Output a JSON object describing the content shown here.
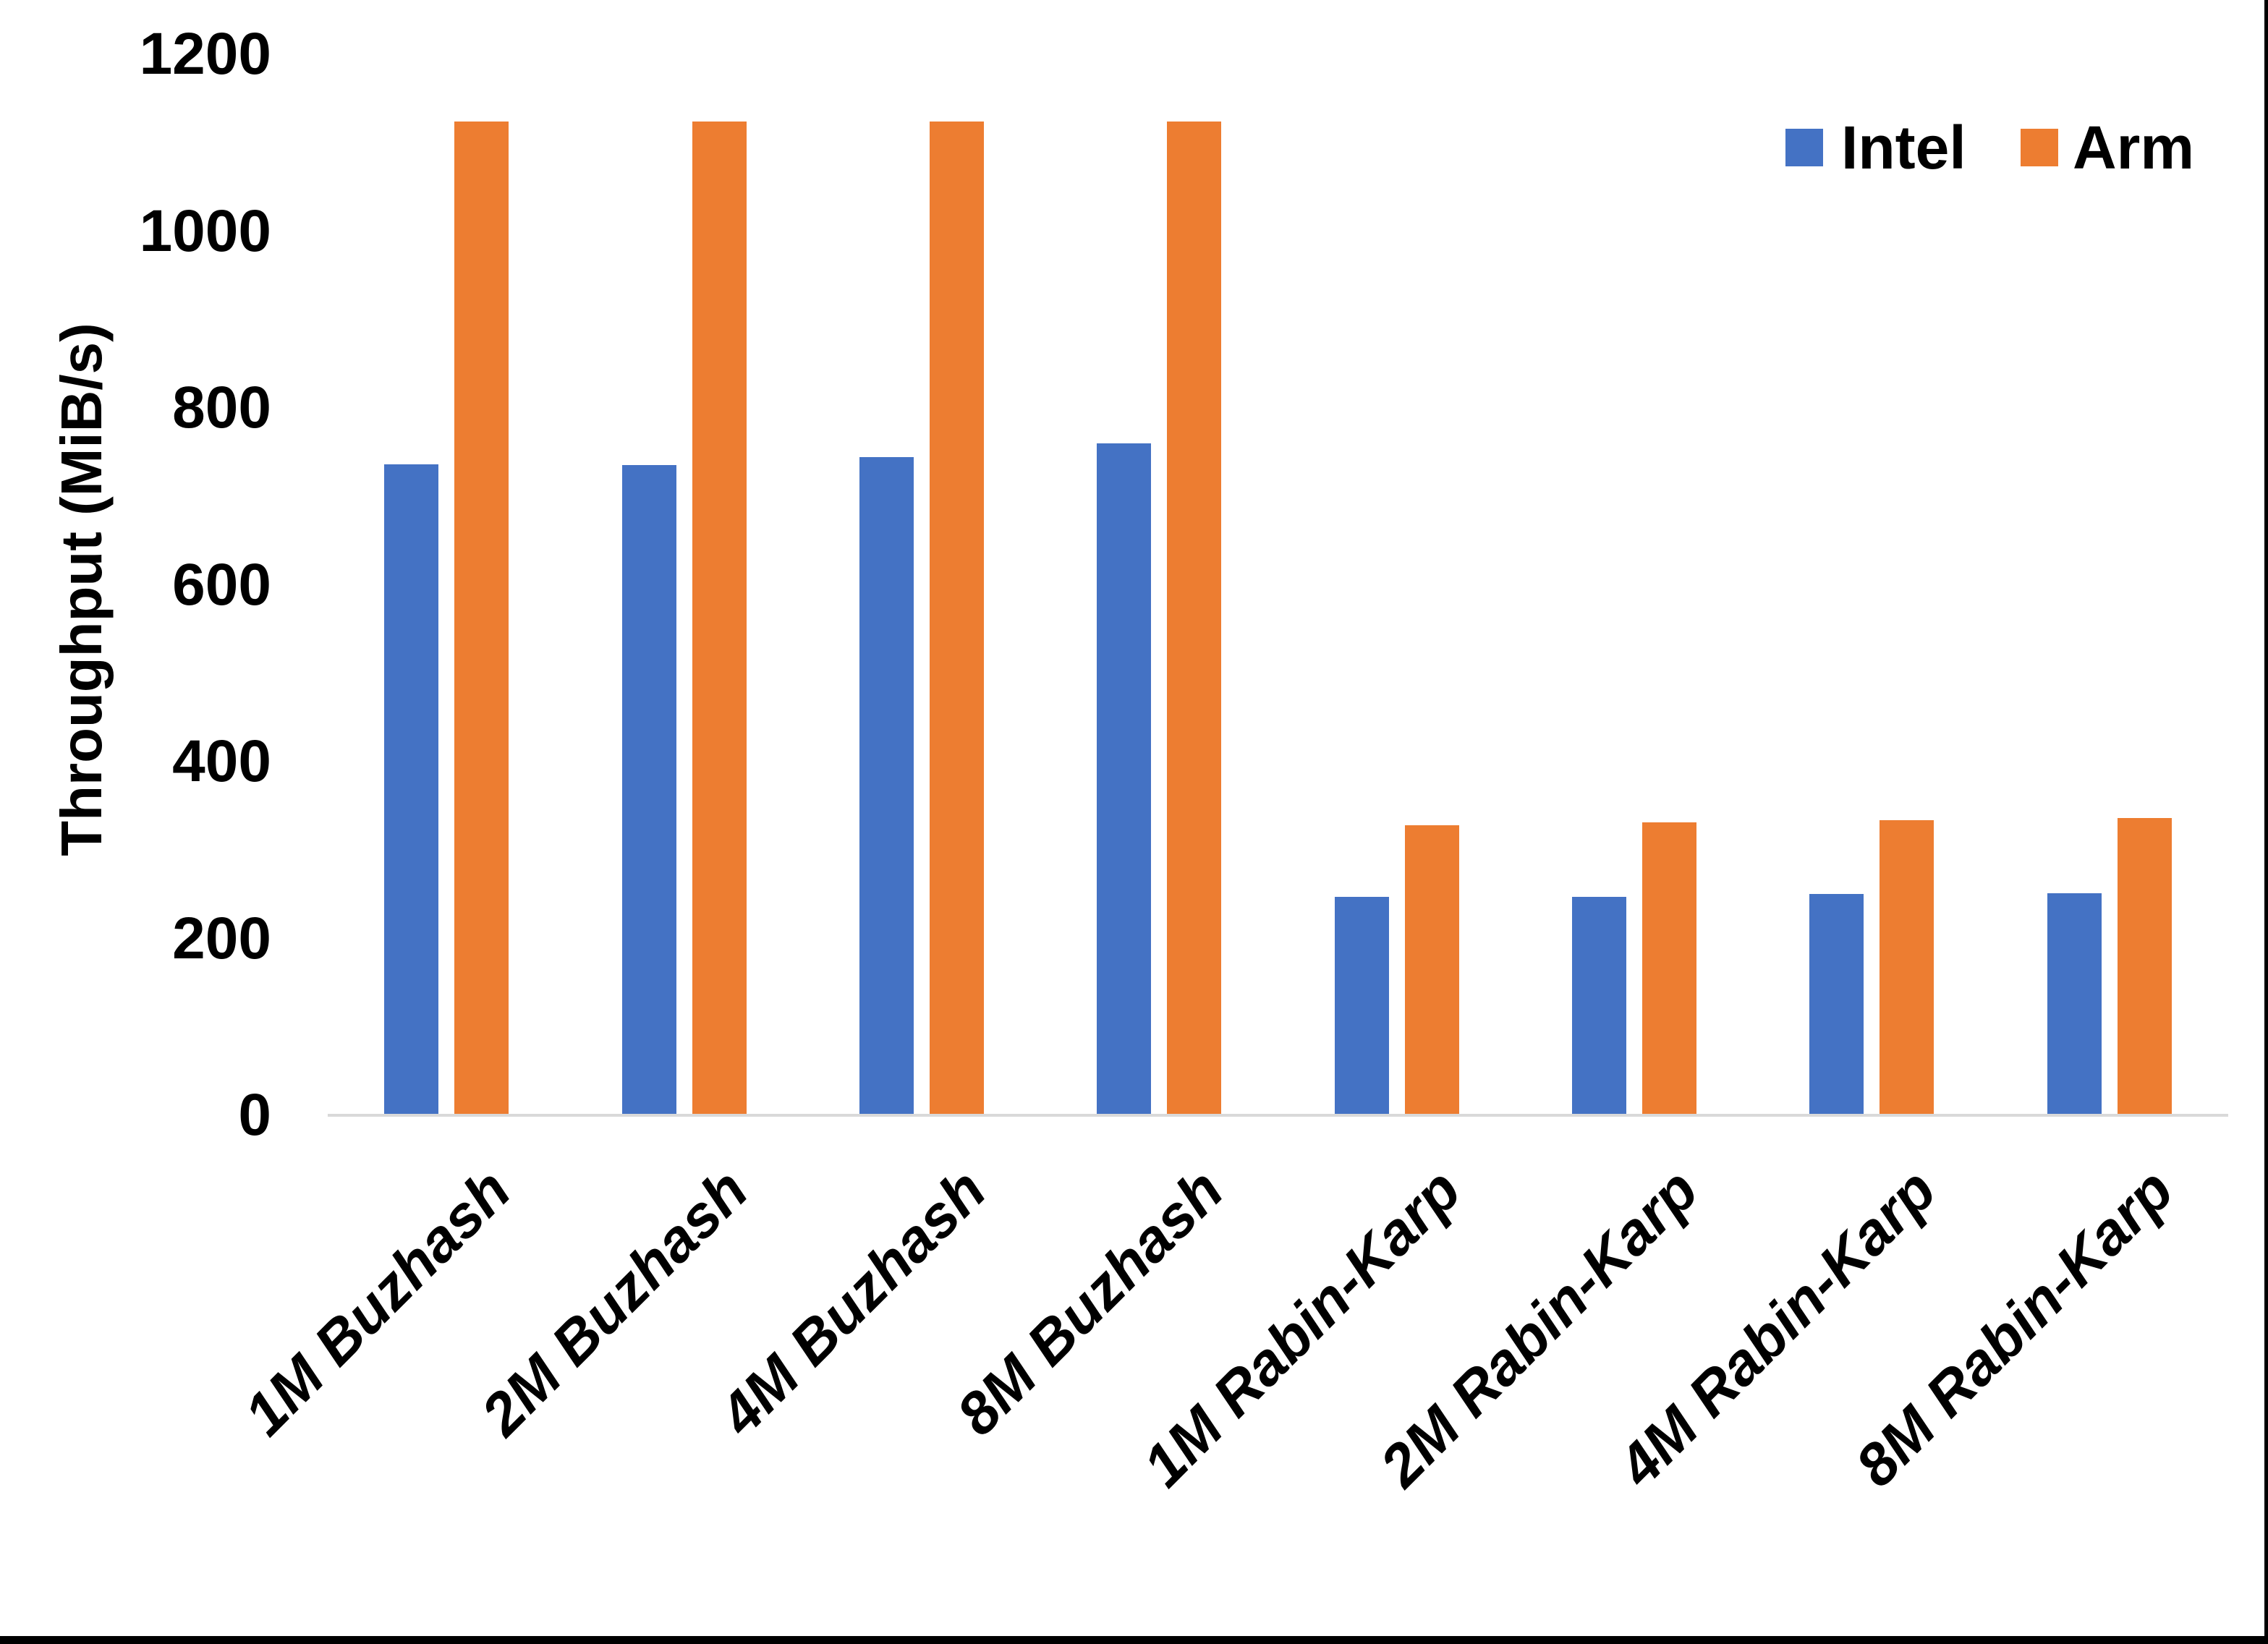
{
  "chart_data": {
    "type": "bar",
    "title": "",
    "xlabel": "",
    "ylabel": "Throughput (MiB/s)",
    "ylim": [
      0,
      1200
    ],
    "yticks": [
      0,
      200,
      400,
      600,
      800,
      1000,
      1200
    ],
    "grid": false,
    "legend_position": "top-right",
    "categories": [
      "1M Buzhash",
      "2M Buzhash",
      "4M Buzhash",
      "8M Buzhash",
      "1M Rabin-Karp",
      "2M Rabin-Karp",
      "4M Rabin-Karp",
      "8M Rabin-Karp"
    ],
    "series": [
      {
        "name": "Intel",
        "color": "#4472C4",
        "values": [
          736,
          735,
          744,
          760,
          247,
          247,
          250,
          251
        ]
      },
      {
        "name": "Arm",
        "color": "#ED7D31",
        "values": [
          1124,
          1124,
          1124,
          1124,
          328,
          331,
          334,
          336
        ]
      }
    ],
    "axis_line_color": "#D9D9D9",
    "text_color": "#000000",
    "background_color": "#FFFFFF"
  },
  "window": {
    "bottom_border_color": "#000000",
    "right_border_color": "#000000"
  }
}
